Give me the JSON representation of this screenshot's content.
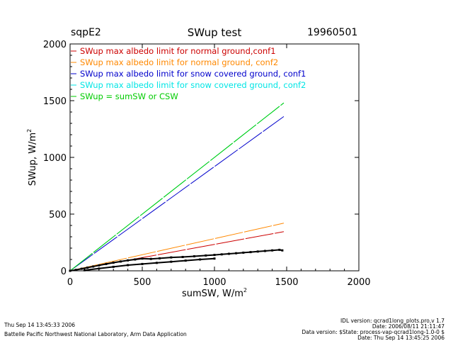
{
  "header": {
    "site": "sqpE2",
    "date": "19960501"
  },
  "footer": {
    "timestamp": "Thu Sep 14 13:45:33 2006",
    "lab": "Battelle Pacific Northwest National Laboratory, Arm Data Application",
    "idl_version": "IDL version: qcrad1long_plots.pro,v 1.7",
    "date_line": "Date: 2006/08/11 21:11:47",
    "data_version": "Data version: $State: process-vap-qcrad1long-1.0-0 $",
    "run_date": "Date: Thu Sep 14 13:45:25 2006"
  },
  "chart_data": {
    "type": "scatter",
    "title": "SWup test",
    "xlabel": "sumSW, W/m",
    "ylabel": "SWup, W/m",
    "xlabel_sup": "2",
    "ylabel_sup": "2",
    "xlim": [
      0,
      2000
    ],
    "ylim": [
      0,
      2000
    ],
    "xticks": [
      0,
      500,
      1000,
      1500,
      2000
    ],
    "yticks": [
      0,
      500,
      1000,
      1500,
      2000
    ],
    "grid": false,
    "legend_position": "top-left",
    "series": [
      {
        "name": "SWup max albedo limit for normal ground,conf1",
        "color": "#cc0000",
        "kind": "line",
        "x": [
          0,
          1480
        ],
        "y": [
          0,
          345
        ]
      },
      {
        "name": "SWup max albedo limit for normal ground, conf2",
        "color": "#ff8800",
        "kind": "line",
        "x": [
          0,
          1480
        ],
        "y": [
          0,
          420
        ]
      },
      {
        "name": "SWup max albedo limit for snow covered ground, conf1",
        "color": "#0000cc",
        "kind": "line",
        "x": [
          0,
          1480
        ],
        "y": [
          0,
          1360
        ]
      },
      {
        "name": "SWup max albedo limit for snow covered ground, conf2",
        "color": "#00e5e5",
        "kind": "line",
        "x": [
          0,
          1480
        ],
        "y": [
          0,
          1480
        ]
      },
      {
        "name": "SWup = sumSW or CSW",
        "color": "#00cc00",
        "kind": "line",
        "x": [
          0,
          1480
        ],
        "y": [
          0,
          1480
        ]
      }
    ],
    "observed": {
      "color": "#000000",
      "x": [
        0,
        40,
        80,
        120,
        160,
        200,
        250,
        300,
        350,
        400,
        450,
        500,
        560,
        620,
        700,
        780,
        860,
        940,
        1000,
        1050,
        1100,
        1150,
        1200,
        1250,
        1300,
        1350,
        1400,
        1450,
        1470
      ],
      "y": [
        0,
        8,
        18,
        28,
        38,
        48,
        60,
        72,
        82,
        92,
        100,
        108,
        105,
        110,
        118,
        122,
        128,
        135,
        140,
        145,
        150,
        155,
        160,
        165,
        170,
        175,
        180,
        185,
        180
      ]
    },
    "observed_lower": {
      "color": "#000000",
      "x": [
        100,
        200,
        300,
        400,
        500,
        600,
        700,
        800,
        900,
        1000
      ],
      "y": [
        5,
        20,
        35,
        50,
        60,
        70,
        80,
        90,
        100,
        108
      ]
    }
  }
}
